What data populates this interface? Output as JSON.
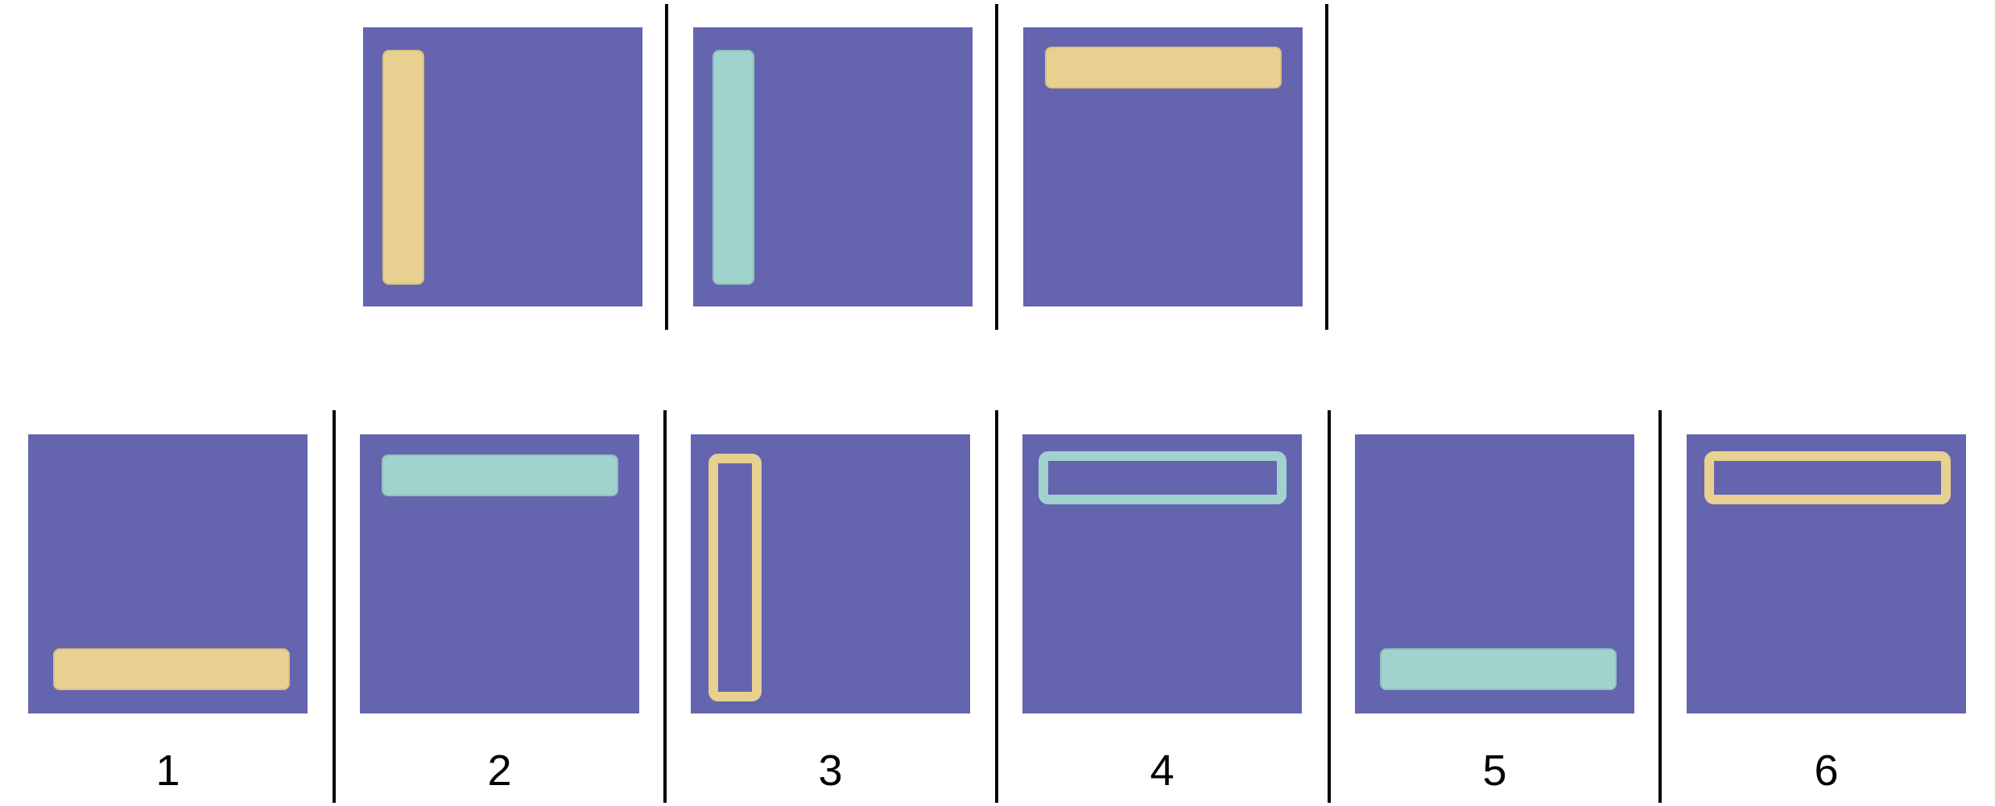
{
  "colors": {
    "panel_background": "#6564ae",
    "yellow": "#e8d090",
    "teal": "#a0d2ce",
    "separator": "#000000"
  },
  "sequence": [
    {
      "shape": "vertical bar",
      "side": "left",
      "style": "filled",
      "color": "yellow"
    },
    {
      "shape": "vertical bar",
      "side": "left",
      "style": "filled",
      "color": "teal"
    },
    {
      "shape": "horizontal bar",
      "side": "top",
      "style": "filled",
      "color": "yellow"
    }
  ],
  "options": [
    {
      "label": "1",
      "shape": "horizontal bar",
      "side": "bottom",
      "style": "filled",
      "color": "yellow"
    },
    {
      "label": "2",
      "shape": "horizontal bar",
      "side": "top",
      "style": "filled",
      "color": "teal"
    },
    {
      "label": "3",
      "shape": "vertical bar",
      "side": "left",
      "style": "outline",
      "color": "yellow"
    },
    {
      "label": "4",
      "shape": "horizontal bar",
      "side": "top",
      "style": "outline",
      "color": "teal"
    },
    {
      "label": "5",
      "shape": "horizontal bar",
      "side": "bottom",
      "style": "filled",
      "color": "teal"
    },
    {
      "label": "6",
      "shape": "horizontal bar",
      "side": "top",
      "style": "outline",
      "color": "yellow"
    }
  ]
}
